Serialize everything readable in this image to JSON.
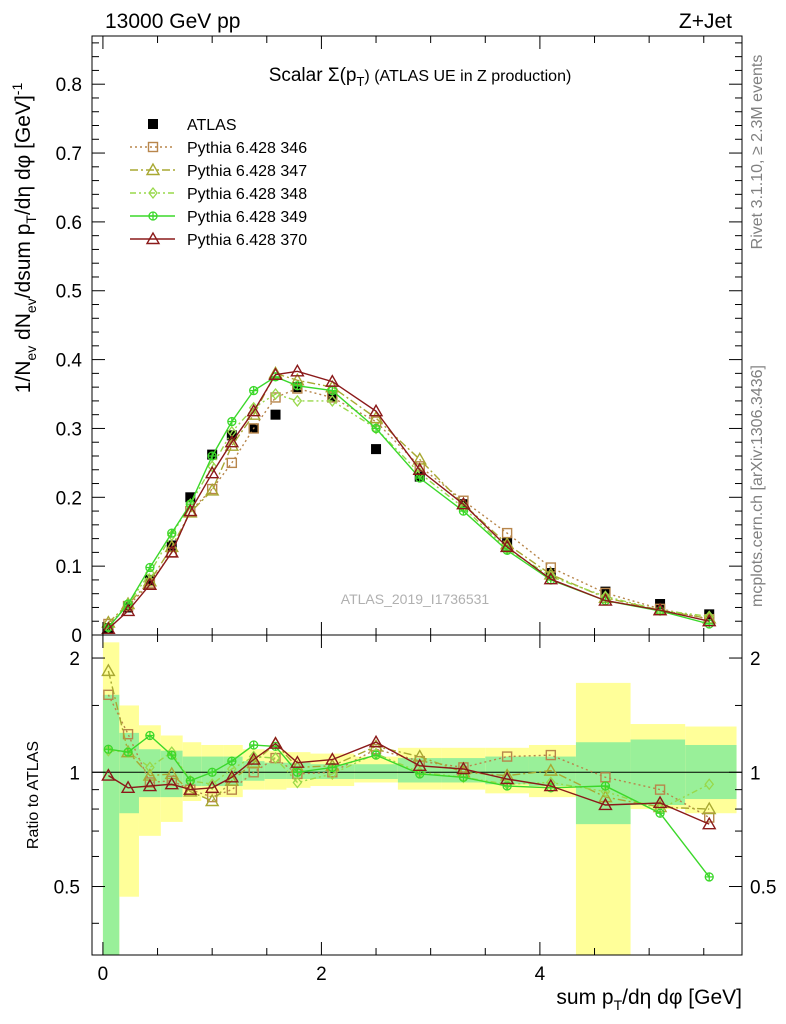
{
  "header": {
    "left": "13000 GeV pp",
    "right": "Z+Jet"
  },
  "side_labels": {
    "rivet": "Rivet 3.1.10, ≥ 2.3M events",
    "mcplots": "mcplots.cern.ch [arXiv:1306.3436]"
  },
  "colors": {
    "atlas": "#000000",
    "s346": "#b8864b",
    "s347": "#a8a832",
    "s348": "#98d84a",
    "s349": "#3bd82a",
    "s370": "#8b1a1a",
    "band_outer": "#ffff99",
    "band_inner": "#99f099"
  },
  "chart_data": [
    {
      "type": "scatter",
      "title": "Scalar Σ(p_T) (ATLAS UE in Z production)",
      "title_parts": {
        "main": "Scalar Σ(p",
        "sub": "T",
        "rest": ") (ATLAS UE in Z production)"
      },
      "ylabel": "1/N_ev dN_ev/dsum p_T/dη dφ [GeV]^-1",
      "ylabel_parts": {
        "a": "1/N",
        "a_sub": "ev",
        "b": " dN",
        "b_sub": "ev",
        "c": "/dsum p",
        "c_sub": "T",
        "d": "/dη dφ  [GeV]",
        "d_sup": "-1"
      },
      "watermark": "ATLAS_2019_I1736531",
      "xlim": [
        -0.1,
        5.85
      ],
      "ylim": [
        0,
        0.87
      ],
      "yticks": [
        0,
        0.1,
        0.2,
        0.3,
        0.4,
        0.5,
        0.6,
        0.7,
        0.8
      ],
      "ytick_labels": [
        "0",
        "0.1",
        "0.2",
        "0.3",
        "0.4",
        "0.5",
        "0.6",
        "0.7",
        "0.8"
      ],
      "legend_position": "top-left",
      "x": [
        0.05,
        0.23,
        0.43,
        0.63,
        0.8,
        1.0,
        1.18,
        1.38,
        1.58,
        1.78,
        2.1,
        2.5,
        2.9,
        3.3,
        3.7,
        4.1,
        4.6,
        5.1,
        5.55
      ],
      "series": [
        {
          "name": "ATLAS",
          "key": "atlas",
          "marker": "square",
          "style": "none",
          "values": [
            0.01,
            0.04,
            0.08,
            0.13,
            0.2,
            0.262,
            0.29,
            0.3,
            0.32,
            0.36,
            0.345,
            0.27,
            0.23,
            0.19,
            0.135,
            0.09,
            0.063,
            0.045,
            0.03
          ]
        },
        {
          "name": "Pythia 6.428 346",
          "key": "s346",
          "marker": "square-open",
          "style": "dotted",
          "values": [
            0.016,
            0.042,
            0.075,
            0.12,
            0.18,
            0.212,
            0.25,
            0.3,
            0.345,
            0.358,
            0.345,
            0.31,
            0.245,
            0.195,
            0.148,
            0.098,
            0.061,
            0.038,
            0.023
          ]
        },
        {
          "name": "Pythia 6.428 347",
          "key": "s347",
          "marker": "triangle-open",
          "style": "dashdot",
          "values": [
            0.018,
            0.045,
            0.078,
            0.128,
            0.178,
            0.21,
            0.275,
            0.32,
            0.38,
            0.37,
            0.36,
            0.315,
            0.255,
            0.19,
            0.132,
            0.088,
            0.054,
            0.036,
            0.024
          ]
        },
        {
          "name": "Pythia 6.428 348",
          "key": "s348",
          "marker": "diamond-open",
          "style": "dashdot2",
          "values": [
            0.011,
            0.045,
            0.09,
            0.145,
            0.19,
            0.245,
            0.295,
            0.33,
            0.35,
            0.34,
            0.34,
            0.3,
            0.235,
            0.185,
            0.125,
            0.085,
            0.056,
            0.036,
            0.027
          ]
        },
        {
          "name": "Pythia 6.428 349",
          "key": "s349",
          "marker": "cross-circle",
          "style": "solid",
          "values": [
            0.011,
            0.045,
            0.098,
            0.148,
            0.19,
            0.26,
            0.31,
            0.355,
            0.375,
            0.362,
            0.355,
            0.3,
            0.228,
            0.18,
            0.123,
            0.08,
            0.05,
            0.035,
            0.016
          ]
        },
        {
          "name": "Pythia 6.428 370",
          "key": "s370",
          "marker": "triangle-open",
          "style": "solid",
          "values": [
            0.009,
            0.035,
            0.073,
            0.12,
            0.18,
            0.235,
            0.28,
            0.325,
            0.378,
            0.383,
            0.368,
            0.325,
            0.24,
            0.19,
            0.128,
            0.081,
            0.05,
            0.036,
            0.02
          ]
        }
      ]
    },
    {
      "type": "line",
      "ylabel": "Ratio to ATLAS",
      "xlabel": "sum p_T/dη dφ [GeV]",
      "xlabel_parts": {
        "a": "sum p",
        "sub": "T",
        "b": "/dη dφ [GeV]"
      },
      "xlim": [
        -0.1,
        5.85
      ],
      "ylim": [
        0.33,
        2.3
      ],
      "log_y": true,
      "xticks": [
        0,
        2,
        4
      ],
      "xtick_labels": [
        "0",
        "2",
        "4"
      ],
      "yticks": [
        0.5,
        1,
        2
      ],
      "ytick_labels": [
        "0.5",
        "1",
        "2"
      ],
      "bins": [
        [
          0.0,
          0.15
        ],
        [
          0.15,
          0.33
        ],
        [
          0.33,
          0.53
        ],
        [
          0.53,
          0.73
        ],
        [
          0.73,
          0.9
        ],
        [
          0.9,
          1.1
        ],
        [
          1.1,
          1.28
        ],
        [
          1.28,
          1.48
        ],
        [
          1.48,
          1.68
        ],
        [
          1.68,
          1.9
        ],
        [
          1.9,
          2.3
        ],
        [
          2.3,
          2.7
        ],
        [
          2.7,
          3.1
        ],
        [
          3.1,
          3.5
        ],
        [
          3.5,
          3.9
        ],
        [
          3.9,
          4.33
        ],
        [
          4.33,
          4.83
        ],
        [
          4.83,
          5.33
        ],
        [
          5.33,
          5.8
        ]
      ],
      "band_outer": [
        [
          0.33,
          2.2
        ],
        [
          0.47,
          1.5
        ],
        [
          0.68,
          1.33
        ],
        [
          0.74,
          1.25
        ],
        [
          0.84,
          1.2
        ],
        [
          0.86,
          1.18
        ],
        [
          0.86,
          1.18
        ],
        [
          0.9,
          1.15
        ],
        [
          0.9,
          1.14
        ],
        [
          0.91,
          1.13
        ],
        [
          0.92,
          1.12
        ],
        [
          0.94,
          1.1
        ],
        [
          0.9,
          1.16
        ],
        [
          0.9,
          1.16
        ],
        [
          0.88,
          1.16
        ],
        [
          0.86,
          1.18
        ],
        [
          0.33,
          1.72
        ],
        [
          0.8,
          1.34
        ],
        [
          0.78,
          1.32
        ]
      ],
      "band_inner": [
        [
          0.33,
          1.6
        ],
        [
          0.78,
          1.27
        ],
        [
          0.86,
          1.15
        ],
        [
          0.86,
          1.14
        ],
        [
          0.92,
          1.1
        ],
        [
          0.92,
          1.1
        ],
        [
          0.92,
          1.1
        ],
        [
          0.95,
          1.07
        ],
        [
          0.96,
          1.06
        ],
        [
          0.96,
          1.06
        ],
        [
          0.96,
          1.05
        ],
        [
          0.96,
          1.05
        ],
        [
          0.94,
          1.09
        ],
        [
          0.94,
          1.09
        ],
        [
          0.93,
          1.1
        ],
        [
          0.92,
          1.1
        ],
        [
          0.73,
          1.2
        ],
        [
          0.82,
          1.22
        ],
        [
          0.85,
          1.18
        ]
      ],
      "series": [
        {
          "name": "Pythia 6.428 346",
          "key": "s346",
          "marker": "square-open",
          "style": "dotted",
          "values": [
            1.6,
            1.26,
            0.94,
            0.95,
            0.9,
            0.86,
            0.9,
            1.0,
            1.09,
            0.99,
            1.0,
            1.15,
            1.07,
            1.03,
            1.1,
            1.11,
            0.97,
            0.9,
            0.76
          ]
        },
        {
          "name": "Pythia 6.428 347",
          "key": "s347",
          "marker": "triangle-open",
          "style": "dashdot",
          "values": [
            1.85,
            1.13,
            0.98,
            0.99,
            0.89,
            0.84,
            0.95,
            1.06,
            1.19,
            1.03,
            1.04,
            1.17,
            1.1,
            1.0,
            0.98,
            1.01,
            0.86,
            0.81,
            0.8
          ]
        },
        {
          "name": "Pythia 6.428 348",
          "key": "s348",
          "marker": "diamond-open",
          "style": "dashdot2",
          "values": [
            1.14,
            1.13,
            1.03,
            1.13,
            0.95,
            0.93,
            1.02,
            1.1,
            1.09,
            0.94,
            0.99,
            1.12,
            1.0,
            0.97,
            0.93,
            0.94,
            0.89,
            0.8,
            0.93
          ]
        },
        {
          "name": "Pythia 6.428 349",
          "key": "s349",
          "marker": "cross-circle",
          "style": "solid",
          "values": [
            1.15,
            1.13,
            1.25,
            1.11,
            0.95,
            1.0,
            1.07,
            1.18,
            1.17,
            1.0,
            1.03,
            1.11,
            0.99,
            0.97,
            0.92,
            0.91,
            0.92,
            0.78,
            0.53
          ]
        },
        {
          "name": "Pythia 6.428 370",
          "key": "s370",
          "marker": "triangle-open",
          "style": "solid",
          "values": [
            0.98,
            0.91,
            0.92,
            0.93,
            0.9,
            0.91,
            0.97,
            1.08,
            1.19,
            1.06,
            1.08,
            1.2,
            1.04,
            1.02,
            0.96,
            0.92,
            0.82,
            0.83,
            0.73
          ]
        }
      ]
    }
  ]
}
